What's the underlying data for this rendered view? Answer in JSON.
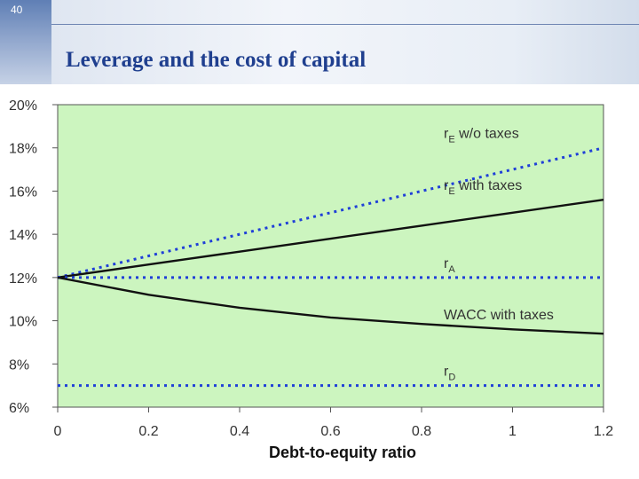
{
  "slide": {
    "page_number": "40",
    "title": "Leverage and the cost of capital"
  },
  "colors": {
    "plot_background": "#ccf5bf",
    "dotted_series": "#1f3fd8",
    "solid_series": "#111111"
  },
  "chart_data": {
    "type": "line",
    "title": "",
    "xlabel": "Debt-to-equity ratio",
    "ylabel": "",
    "xlim": [
      0,
      1.2
    ],
    "ylim": [
      6,
      20
    ],
    "x_ticks": [
      "0",
      "0.2",
      "0.4",
      "0.6",
      "0.8",
      "1",
      "1.2"
    ],
    "y_ticks": [
      "6%",
      "8%",
      "10%",
      "12%",
      "14%",
      "16%",
      "18%",
      "20%"
    ],
    "grid": false,
    "x": [
      0,
      0.2,
      0.4,
      0.6,
      0.8,
      1.0,
      1.2
    ],
    "series": [
      {
        "name": "w/o taxes",
        "subscript": "E",
        "prefix": "r",
        "style": "dotted",
        "values": [
          12.0,
          13.0,
          14.0,
          15.0,
          16.0,
          17.0,
          18.0
        ]
      },
      {
        "name": "with taxes",
        "subscript": "E",
        "prefix": "r",
        "style": "solid",
        "values": [
          12.0,
          12.6,
          13.2,
          13.8,
          14.4,
          15.0,
          15.6
        ]
      },
      {
        "name": "",
        "subscript": "A",
        "prefix": "r",
        "style": "dotted",
        "values": [
          12.0,
          12.0,
          12.0,
          12.0,
          12.0,
          12.0,
          12.0
        ]
      },
      {
        "name": "WACC with taxes",
        "subscript": "",
        "prefix": "",
        "style": "solid",
        "values": [
          12.0,
          11.2,
          10.6,
          10.15,
          9.85,
          9.6,
          9.4
        ]
      },
      {
        "name": "",
        "subscript": "D",
        "prefix": "r",
        "style": "dotted",
        "values": [
          7.0,
          7.0,
          7.0,
          7.0,
          7.0,
          7.0,
          7.0
        ]
      }
    ],
    "series_label_positions": [
      "upper-right",
      "upper-right",
      "upper-right",
      "upper-right",
      "upper-right"
    ]
  }
}
